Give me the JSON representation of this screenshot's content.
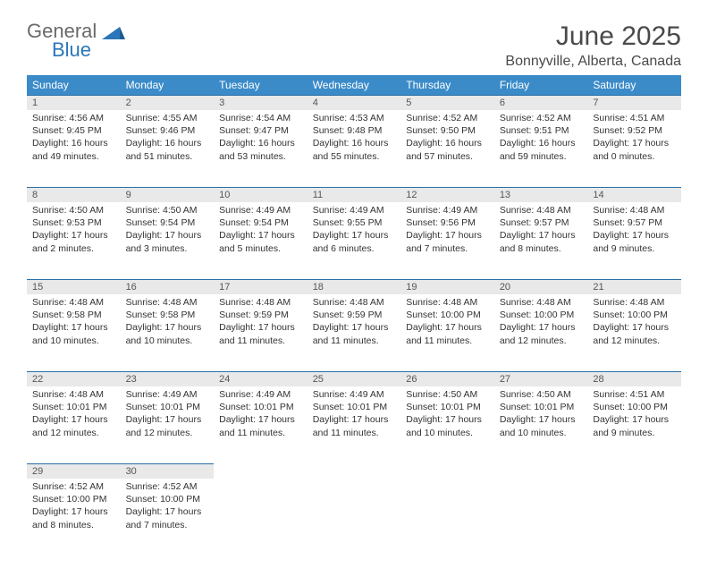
{
  "brand": {
    "word1": "General",
    "word2": "Blue"
  },
  "title": {
    "month": "June 2025",
    "location": "Bonnyville, Alberta, Canada"
  },
  "colors": {
    "header_bg": "#3b8bc9",
    "header_text": "#ffffff",
    "daynum_bg": "#e9e9e9",
    "daynum_border": "#2a6fa8",
    "body_text": "#333333",
    "title_text": "#4a4a4a",
    "logo_gray": "#6a6a6a",
    "logo_blue": "#2a76b9",
    "background": "#ffffff"
  },
  "typography": {
    "month_fontsize": 30,
    "location_fontsize": 16,
    "header_fontsize": 12,
    "cell_fontsize": 10.5,
    "daynum_fontsize": 11,
    "logo_fontsize": 22
  },
  "weekdays": [
    "Sunday",
    "Monday",
    "Tuesday",
    "Wednesday",
    "Thursday",
    "Friday",
    "Saturday"
  ],
  "weeks": [
    [
      {
        "n": "1",
        "sunrise": "Sunrise: 4:56 AM",
        "sunset": "Sunset: 9:45 PM",
        "daylight": "Daylight: 16 hours and 49 minutes."
      },
      {
        "n": "2",
        "sunrise": "Sunrise: 4:55 AM",
        "sunset": "Sunset: 9:46 PM",
        "daylight": "Daylight: 16 hours and 51 minutes."
      },
      {
        "n": "3",
        "sunrise": "Sunrise: 4:54 AM",
        "sunset": "Sunset: 9:47 PM",
        "daylight": "Daylight: 16 hours and 53 minutes."
      },
      {
        "n": "4",
        "sunrise": "Sunrise: 4:53 AM",
        "sunset": "Sunset: 9:48 PM",
        "daylight": "Daylight: 16 hours and 55 minutes."
      },
      {
        "n": "5",
        "sunrise": "Sunrise: 4:52 AM",
        "sunset": "Sunset: 9:50 PM",
        "daylight": "Daylight: 16 hours and 57 minutes."
      },
      {
        "n": "6",
        "sunrise": "Sunrise: 4:52 AM",
        "sunset": "Sunset: 9:51 PM",
        "daylight": "Daylight: 16 hours and 59 minutes."
      },
      {
        "n": "7",
        "sunrise": "Sunrise: 4:51 AM",
        "sunset": "Sunset: 9:52 PM",
        "daylight": "Daylight: 17 hours and 0 minutes."
      }
    ],
    [
      {
        "n": "8",
        "sunrise": "Sunrise: 4:50 AM",
        "sunset": "Sunset: 9:53 PM",
        "daylight": "Daylight: 17 hours and 2 minutes."
      },
      {
        "n": "9",
        "sunrise": "Sunrise: 4:50 AM",
        "sunset": "Sunset: 9:54 PM",
        "daylight": "Daylight: 17 hours and 3 minutes."
      },
      {
        "n": "10",
        "sunrise": "Sunrise: 4:49 AM",
        "sunset": "Sunset: 9:54 PM",
        "daylight": "Daylight: 17 hours and 5 minutes."
      },
      {
        "n": "11",
        "sunrise": "Sunrise: 4:49 AM",
        "sunset": "Sunset: 9:55 PM",
        "daylight": "Daylight: 17 hours and 6 minutes."
      },
      {
        "n": "12",
        "sunrise": "Sunrise: 4:49 AM",
        "sunset": "Sunset: 9:56 PM",
        "daylight": "Daylight: 17 hours and 7 minutes."
      },
      {
        "n": "13",
        "sunrise": "Sunrise: 4:48 AM",
        "sunset": "Sunset: 9:57 PM",
        "daylight": "Daylight: 17 hours and 8 minutes."
      },
      {
        "n": "14",
        "sunrise": "Sunrise: 4:48 AM",
        "sunset": "Sunset: 9:57 PM",
        "daylight": "Daylight: 17 hours and 9 minutes."
      }
    ],
    [
      {
        "n": "15",
        "sunrise": "Sunrise: 4:48 AM",
        "sunset": "Sunset: 9:58 PM",
        "daylight": "Daylight: 17 hours and 10 minutes."
      },
      {
        "n": "16",
        "sunrise": "Sunrise: 4:48 AM",
        "sunset": "Sunset: 9:58 PM",
        "daylight": "Daylight: 17 hours and 10 minutes."
      },
      {
        "n": "17",
        "sunrise": "Sunrise: 4:48 AM",
        "sunset": "Sunset: 9:59 PM",
        "daylight": "Daylight: 17 hours and 11 minutes."
      },
      {
        "n": "18",
        "sunrise": "Sunrise: 4:48 AM",
        "sunset": "Sunset: 9:59 PM",
        "daylight": "Daylight: 17 hours and 11 minutes."
      },
      {
        "n": "19",
        "sunrise": "Sunrise: 4:48 AM",
        "sunset": "Sunset: 10:00 PM",
        "daylight": "Daylight: 17 hours and 11 minutes."
      },
      {
        "n": "20",
        "sunrise": "Sunrise: 4:48 AM",
        "sunset": "Sunset: 10:00 PM",
        "daylight": "Daylight: 17 hours and 12 minutes."
      },
      {
        "n": "21",
        "sunrise": "Sunrise: 4:48 AM",
        "sunset": "Sunset: 10:00 PM",
        "daylight": "Daylight: 17 hours and 12 minutes."
      }
    ],
    [
      {
        "n": "22",
        "sunrise": "Sunrise: 4:48 AM",
        "sunset": "Sunset: 10:01 PM",
        "daylight": "Daylight: 17 hours and 12 minutes."
      },
      {
        "n": "23",
        "sunrise": "Sunrise: 4:49 AM",
        "sunset": "Sunset: 10:01 PM",
        "daylight": "Daylight: 17 hours and 12 minutes."
      },
      {
        "n": "24",
        "sunrise": "Sunrise: 4:49 AM",
        "sunset": "Sunset: 10:01 PM",
        "daylight": "Daylight: 17 hours and 11 minutes."
      },
      {
        "n": "25",
        "sunrise": "Sunrise: 4:49 AM",
        "sunset": "Sunset: 10:01 PM",
        "daylight": "Daylight: 17 hours and 11 minutes."
      },
      {
        "n": "26",
        "sunrise": "Sunrise: 4:50 AM",
        "sunset": "Sunset: 10:01 PM",
        "daylight": "Daylight: 17 hours and 10 minutes."
      },
      {
        "n": "27",
        "sunrise": "Sunrise: 4:50 AM",
        "sunset": "Sunset: 10:01 PM",
        "daylight": "Daylight: 17 hours and 10 minutes."
      },
      {
        "n": "28",
        "sunrise": "Sunrise: 4:51 AM",
        "sunset": "Sunset: 10:00 PM",
        "daylight": "Daylight: 17 hours and 9 minutes."
      }
    ],
    [
      {
        "n": "29",
        "sunrise": "Sunrise: 4:52 AM",
        "sunset": "Sunset: 10:00 PM",
        "daylight": "Daylight: 17 hours and 8 minutes."
      },
      {
        "n": "30",
        "sunrise": "Sunrise: 4:52 AM",
        "sunset": "Sunset: 10:00 PM",
        "daylight": "Daylight: 17 hours and 7 minutes."
      },
      null,
      null,
      null,
      null,
      null
    ]
  ]
}
